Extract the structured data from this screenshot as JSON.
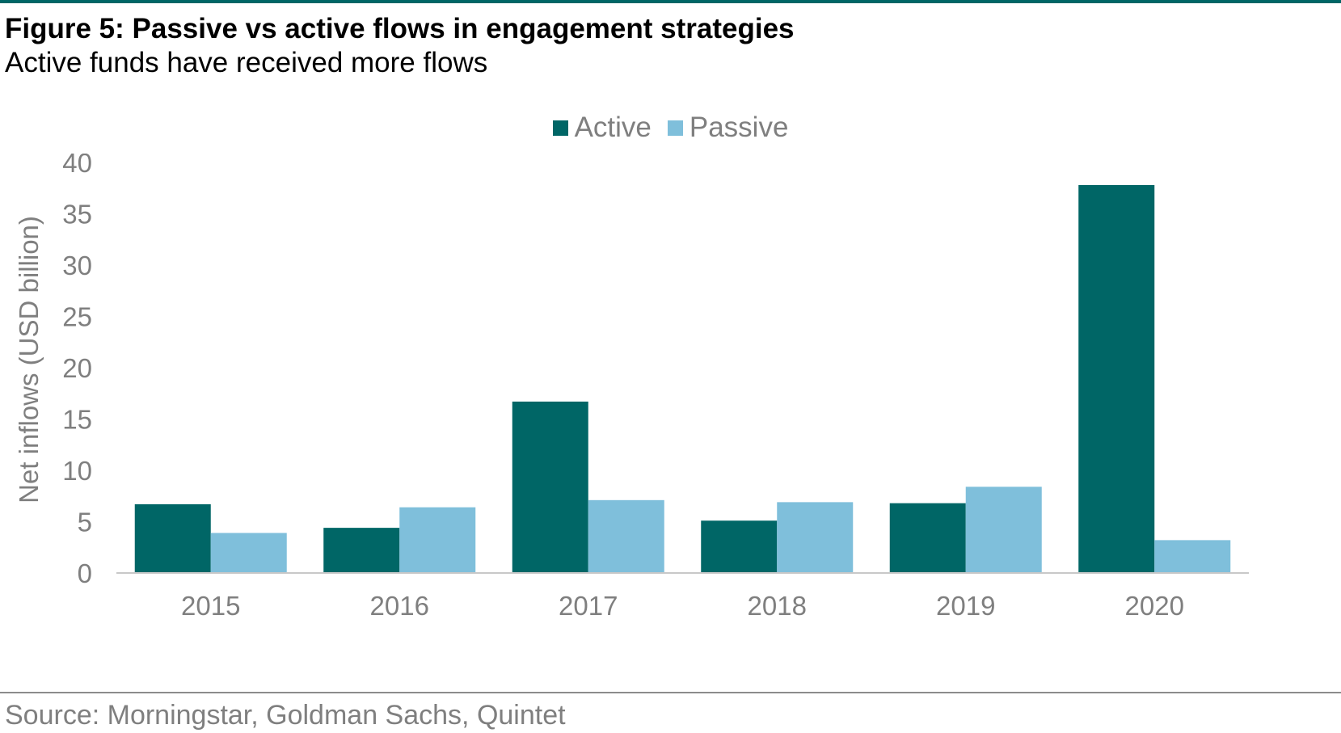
{
  "title": "Figure 5: Passive vs active flows in engagement strategies",
  "subtitle": "Active funds have received more flows",
  "source": "Source: Morningstar, Goldman Sachs, Quintet",
  "colors": {
    "active": "#006666",
    "passive": "#7fbfdb",
    "rule": "#006666"
  },
  "chart_data": {
    "type": "bar",
    "categories": [
      "2015",
      "2016",
      "2017",
      "2018",
      "2019",
      "2020"
    ],
    "series": [
      {
        "name": "Active",
        "values": [
          6.7,
          4.4,
          16.7,
          5.1,
          6.8,
          37.8
        ]
      },
      {
        "name": "Passive",
        "values": [
          3.9,
          6.4,
          7.1,
          6.9,
          8.4,
          3.2
        ]
      }
    ],
    "ylabel": "Net inflows (USD billion)",
    "xlabel": "",
    "ylim": [
      0,
      40
    ],
    "yticks": [
      0,
      5,
      10,
      15,
      20,
      25,
      30,
      35,
      40
    ],
    "grid": false,
    "legend": "top-center"
  }
}
